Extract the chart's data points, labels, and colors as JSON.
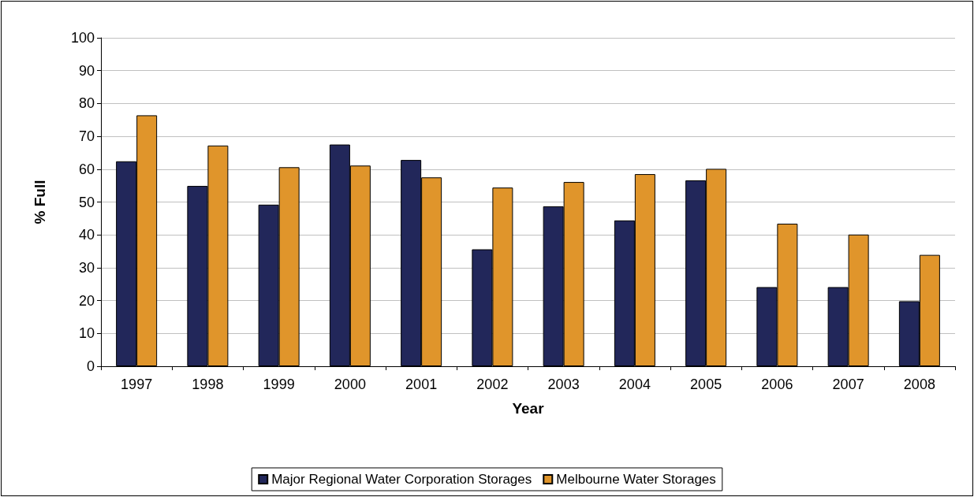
{
  "chart_data": {
    "type": "bar",
    "xlabel": "Year",
    "ylabel": "% Full",
    "categories": [
      "1997",
      "1998",
      "1999",
      "2000",
      "2001",
      "2002",
      "2003",
      "2004",
      "2005",
      "2006",
      "2007",
      "2008"
    ],
    "series": [
      {
        "name": "Major Regional Water Corporation Storages",
        "color": "#22275a",
        "values": [
          62.4,
          54.9,
          49.2,
          67.5,
          62.8,
          35.6,
          48.7,
          44.4,
          56.6,
          24.1,
          24.1,
          19.8
        ]
      },
      {
        "name": "Melbourne Water Storages",
        "color": "#e0952b",
        "values": [
          76.4,
          67.2,
          60.6,
          61.1,
          57.5,
          54.4,
          56.1,
          58.5,
          60.1,
          43.4,
          40.1,
          33.9
        ]
      }
    ],
    "ylim": [
      0,
      100
    ],
    "yticks": [
      0,
      10,
      20,
      30,
      40,
      50,
      60,
      70,
      80,
      90,
      100
    ],
    "grid": "y",
    "legend": "bottom"
  }
}
